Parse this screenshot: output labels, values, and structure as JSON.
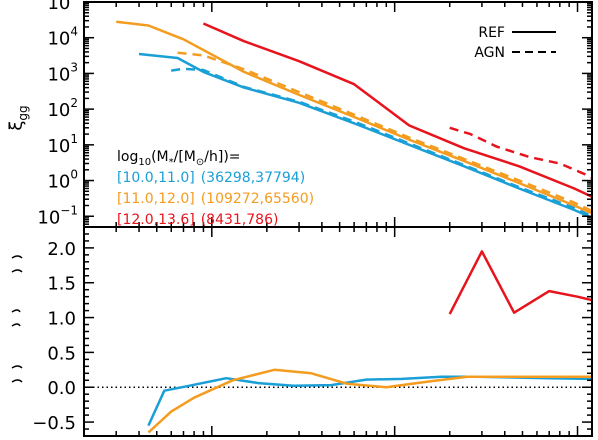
{
  "chart_data": [
    {
      "type": "line",
      "panel": "top",
      "ylabel_main": "ξ",
      "ylabel_sub": "gg",
      "yscale": "log",
      "xscale": "log",
      "xlim": [
        0.02,
        12
      ],
      "ylim": [
        0.05,
        100000
      ],
      "ytick_labels": [
        {
          "value": 0.1,
          "base": "10",
          "exp": "−1"
        },
        {
          "value": 1,
          "base": "10",
          "exp": "0"
        },
        {
          "value": 10,
          "base": "10",
          "exp": "1"
        },
        {
          "value": 100,
          "base": "10",
          "exp": "2"
        },
        {
          "value": 1000,
          "base": "10",
          "exp": "3"
        },
        {
          "value": 10000,
          "base": "10",
          "exp": "4"
        },
        {
          "value": 100000,
          "base": "10",
          "exp": "5"
        }
      ],
      "legend": {
        "position": "top-right",
        "entries": [
          {
            "label": "REF",
            "style": "solid"
          },
          {
            "label": "AGN",
            "style": "dashed"
          }
        ]
      },
      "annotation": {
        "prefix": "log",
        "sub10": "10",
        "mid": "(M",
        "star": "*",
        "slash": "/[M",
        "sun": "⊙",
        "tail": "/h])=",
        "rows": [
          {
            "color": "#1a9fd6",
            "range": "[10.0,11.0]",
            "counts": "(36298,37794)"
          },
          {
            "color": "#f39c1f",
            "range": "[11.0,12.0]",
            "counts": "(109272,65560)"
          },
          {
            "color": "#e8141d",
            "range": "[12.0,13.6]",
            "counts": "(8431,786)"
          }
        ]
      },
      "series": [
        {
          "name": "[10.0,11.0] REF",
          "color": "#1a9fd6",
          "style": "solid",
          "x": [
            0.04,
            0.065,
            0.09,
            0.15,
            0.3,
            0.6,
            1.2,
            2.4,
            4.8,
            9.6,
            12
          ],
          "y": [
            3500,
            2700,
            1100,
            400,
            150,
            40,
            10,
            2.5,
            0.6,
            0.15,
            0.09
          ]
        },
        {
          "name": "[10.0,11.0] AGN",
          "color": "#1a9fd6",
          "style": "dashed",
          "x": [
            0.06,
            0.07,
            0.09,
            0.15,
            0.3,
            0.6,
            1.2,
            2.4,
            4.8,
            9.6,
            12
          ],
          "y": [
            1200,
            1350,
            1250,
            420,
            160,
            45,
            11,
            2.7,
            0.65,
            0.17,
            0.1
          ]
        },
        {
          "name": "[11.0,12.0] REF",
          "color": "#f39c1f",
          "style": "solid",
          "x": [
            0.03,
            0.045,
            0.07,
            0.15,
            0.3,
            0.6,
            1.2,
            2.4,
            4.8,
            9.6,
            12
          ],
          "y": [
            28000,
            22000,
            9000,
            1100,
            250,
            60,
            14,
            3.5,
            0.85,
            0.2,
            0.12
          ]
        },
        {
          "name": "[11.0,12.0] AGN",
          "color": "#f39c1f",
          "style": "dashed",
          "x": [
            0.065,
            0.09,
            0.15,
            0.3,
            0.6,
            1.2,
            2.4,
            4.8,
            9.6,
            12
          ],
          "y": [
            3800,
            3200,
            1300,
            300,
            70,
            16,
            4.0,
            1.0,
            0.24,
            0.14
          ]
        },
        {
          "name": "[12.0,13.6] REF",
          "color": "#e8141d",
          "style": "solid",
          "x": [
            0.09,
            0.15,
            0.3,
            0.6,
            1.2,
            2.4,
            4.8,
            9.6,
            12
          ],
          "y": [
            25000,
            8000,
            2200,
            500,
            35,
            8,
            2.5,
            0.6,
            0.35
          ]
        },
        {
          "name": "[12.0,13.6] AGN",
          "color": "#e8141d",
          "style": "dashed",
          "x": [
            2.0,
            2.6,
            3.6,
            5.5,
            8.0,
            11.0,
            12
          ],
          "y": [
            30,
            20,
            9,
            4.5,
            3.0,
            1.5,
            1.2
          ]
        }
      ]
    },
    {
      "type": "line",
      "panel": "bottom",
      "xscale": "log",
      "xlim": [
        0.02,
        12
      ],
      "ylim": [
        -0.7,
        2.3
      ],
      "yticks": [
        -0.5,
        0.0,
        0.5,
        1.0,
        1.5,
        2.0
      ],
      "ytick_labels": [
        "−0.5",
        "0.0",
        "0.5",
        "1.0",
        "1.5",
        "2.0"
      ],
      "reference_line": {
        "y": 0,
        "style": "dotted"
      },
      "series": [
        {
          "color": "#1a9fd6",
          "x": [
            0.045,
            0.055,
            0.075,
            0.12,
            0.18,
            0.28,
            0.45,
            0.7,
            1.1,
            1.8,
            2.8,
            4.5,
            7.0,
            12
          ],
          "y": [
            -0.55,
            -0.05,
            0.02,
            0.13,
            0.06,
            0.02,
            0.03,
            0.11,
            0.12,
            0.15,
            0.15,
            0.14,
            0.13,
            0.12
          ]
        },
        {
          "color": "#f39c1f",
          "x": [
            0.045,
            0.06,
            0.08,
            0.13,
            0.22,
            0.35,
            0.55,
            0.9,
            1.5,
            2.5,
            4.0,
            7.0,
            12
          ],
          "y": [
            -0.65,
            -0.35,
            -0.15,
            0.1,
            0.25,
            0.2,
            0.05,
            0.0,
            0.08,
            0.15,
            0.15,
            0.15,
            0.15
          ]
        },
        {
          "color": "#e8141d",
          "x": [
            2.0,
            3.0,
            4.5,
            7.0,
            10.0,
            12
          ],
          "y": [
            1.05,
            1.95,
            1.07,
            1.38,
            1.3,
            1.25
          ]
        }
      ]
    }
  ]
}
